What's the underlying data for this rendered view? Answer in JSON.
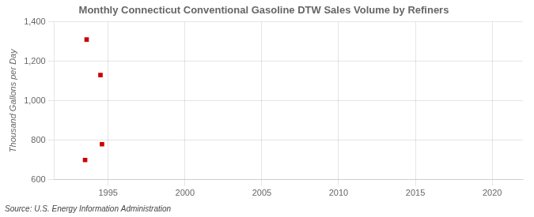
{
  "chart_data": {
    "type": "scatter",
    "title": "Monthly Connecticut Conventional Gasoline DTW Sales Volume by Refiners",
    "y_label": "Thousand Gallons per Day",
    "annotations": [
      "Source: U.S. Energy Information Administration"
    ],
    "x": [
      1993.5,
      1993.6,
      1994.5,
      1994.6
    ],
    "values": [
      700,
      1310,
      1130,
      780
    ],
    "color": "#cc0000",
    "marker": "square",
    "xlim": [
      1991.5,
      2022
    ],
    "xticks": [
      1995,
      2000,
      2005,
      2010,
      2015,
      2020
    ],
    "ylim": [
      600,
      1400
    ],
    "yticks": [
      600,
      800,
      {
        "value": 1000,
        "label": "1,000"
      },
      {
        "value": 1200,
        "label": "1,200"
      },
      {
        "value": 1400,
        "label": "1,400"
      }
    ],
    "grid": true
  }
}
